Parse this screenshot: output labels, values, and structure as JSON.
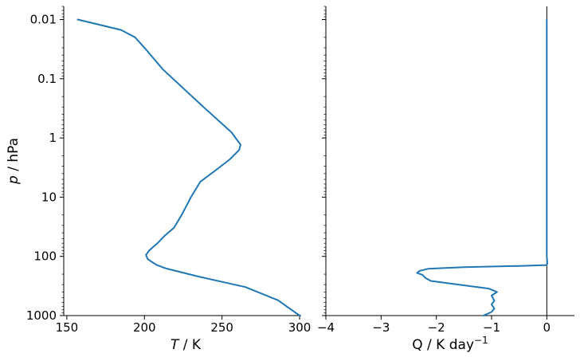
{
  "chart_data": [
    {
      "type": "line",
      "xlabel_italic": "T",
      "xlabel_unit": " / K",
      "ylabel_italic": "p",
      "ylabel_unit": " / hPa",
      "xlim": [
        148,
        301
      ],
      "ylim": [
        1000,
        0.006
      ],
      "y_scale": "log",
      "x_ticks": [
        150,
        200,
        250,
        300
      ],
      "x_tick_labels": [
        "150",
        "200",
        "250",
        "300"
      ],
      "y_ticks": [
        0.01,
        0.1,
        1,
        10,
        100,
        1000
      ],
      "y_tick_labels": [
        "0.01",
        "0.1",
        "1",
        "10",
        "100",
        "1000"
      ],
      "line_color": "#1f77b4",
      "series": [
        {
          "x": [
            157,
            185,
            194,
            200,
            212,
            238,
            256,
            262,
            261,
            255,
            246,
            236,
            230,
            224,
            219,
            213,
            209,
            203,
            201,
            202,
            205,
            208,
            214,
            235,
            265,
            286,
            300
          ],
          "y": [
            0.01,
            0.015,
            0.02,
            0.03,
            0.07,
            0.3,
            0.8,
            1.3,
            1.6,
            2.3,
            3.5,
            5.5,
            10,
            20,
            33,
            45,
            58,
            80,
            95,
            110,
            125,
            140,
            160,
            220,
            330,
            550,
            1000
          ]
        }
      ]
    },
    {
      "type": "line",
      "xlabel_main": "Q / K day",
      "xlabel_sup": "−1",
      "xlim": [
        -4,
        0.5
      ],
      "ylim": [
        1000,
        0.006
      ],
      "y_scale": "log",
      "x_ticks": [
        -4,
        -3,
        -2,
        -1,
        0
      ],
      "x_tick_labels": [
        "−4",
        "−3",
        "−2",
        "−1",
        "0"
      ],
      "line_color": "#1f77b4",
      "series": [
        {
          "x": [
            0,
            0,
            0,
            0,
            0.01,
            0,
            -0.5,
            -1.5,
            -2.15,
            -2.3,
            -2.35,
            -2.25,
            -2.2,
            -2.1,
            -1.6,
            -1.05,
            -0.9,
            -1.0,
            -0.95,
            -1.0,
            -0.95,
            -1.0,
            -1.15
          ],
          "y": [
            0.01,
            1,
            10,
            100,
            130,
            140,
            145,
            152,
            162,
            175,
            190,
            205,
            230,
            260,
            300,
            350,
            400,
            460,
            560,
            650,
            760,
            870,
            1000
          ]
        }
      ],
      "zero_line": true
    }
  ]
}
